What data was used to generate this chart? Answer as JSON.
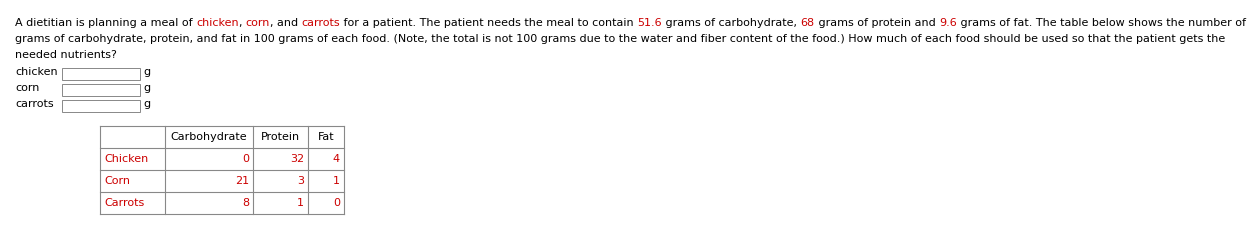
{
  "line1_pieces": [
    [
      "A dietitian is planning a meal of ",
      "#000000"
    ],
    [
      "chicken",
      "#CC0000"
    ],
    [
      ", ",
      "#000000"
    ],
    [
      "corn",
      "#CC0000"
    ],
    [
      ", and ",
      "#000000"
    ],
    [
      "carrots",
      "#CC0000"
    ],
    [
      " for a patient. The patient needs the meal to contain ",
      "#000000"
    ],
    [
      "51.6",
      "#CC0000"
    ],
    [
      " grams of carbohydrate, ",
      "#000000"
    ],
    [
      "68",
      "#CC0000"
    ],
    [
      " grams of protein and ",
      "#000000"
    ],
    [
      "9.6",
      "#CC0000"
    ],
    [
      " grams of fat. The table below shows the number of",
      "#000000"
    ]
  ],
  "line2": "grams of carbohydrate, protein, and fat in 100 grams of each food. (Note, the total is not 100 grams due to the water and fiber content of the food.) How much of each food should be used so that the patient gets the",
  "line3": "needed nutrients?",
  "food_labels": [
    "chicken",
    "corn",
    "carrots"
  ],
  "table_headers": [
    "",
    "Carbohydrate",
    "Protein",
    "Fat"
  ],
  "table_rows": [
    [
      "Chicken",
      "0",
      "32",
      "4"
    ],
    [
      "Corn",
      "21",
      "3",
      "1"
    ],
    [
      "Carrots",
      "8",
      "1",
      "0"
    ]
  ],
  "red_color": "#CC0000",
  "black_color": "#000000",
  "gray_color": "#888888",
  "bg_color": "#ffffff",
  "font_size": 8.0
}
